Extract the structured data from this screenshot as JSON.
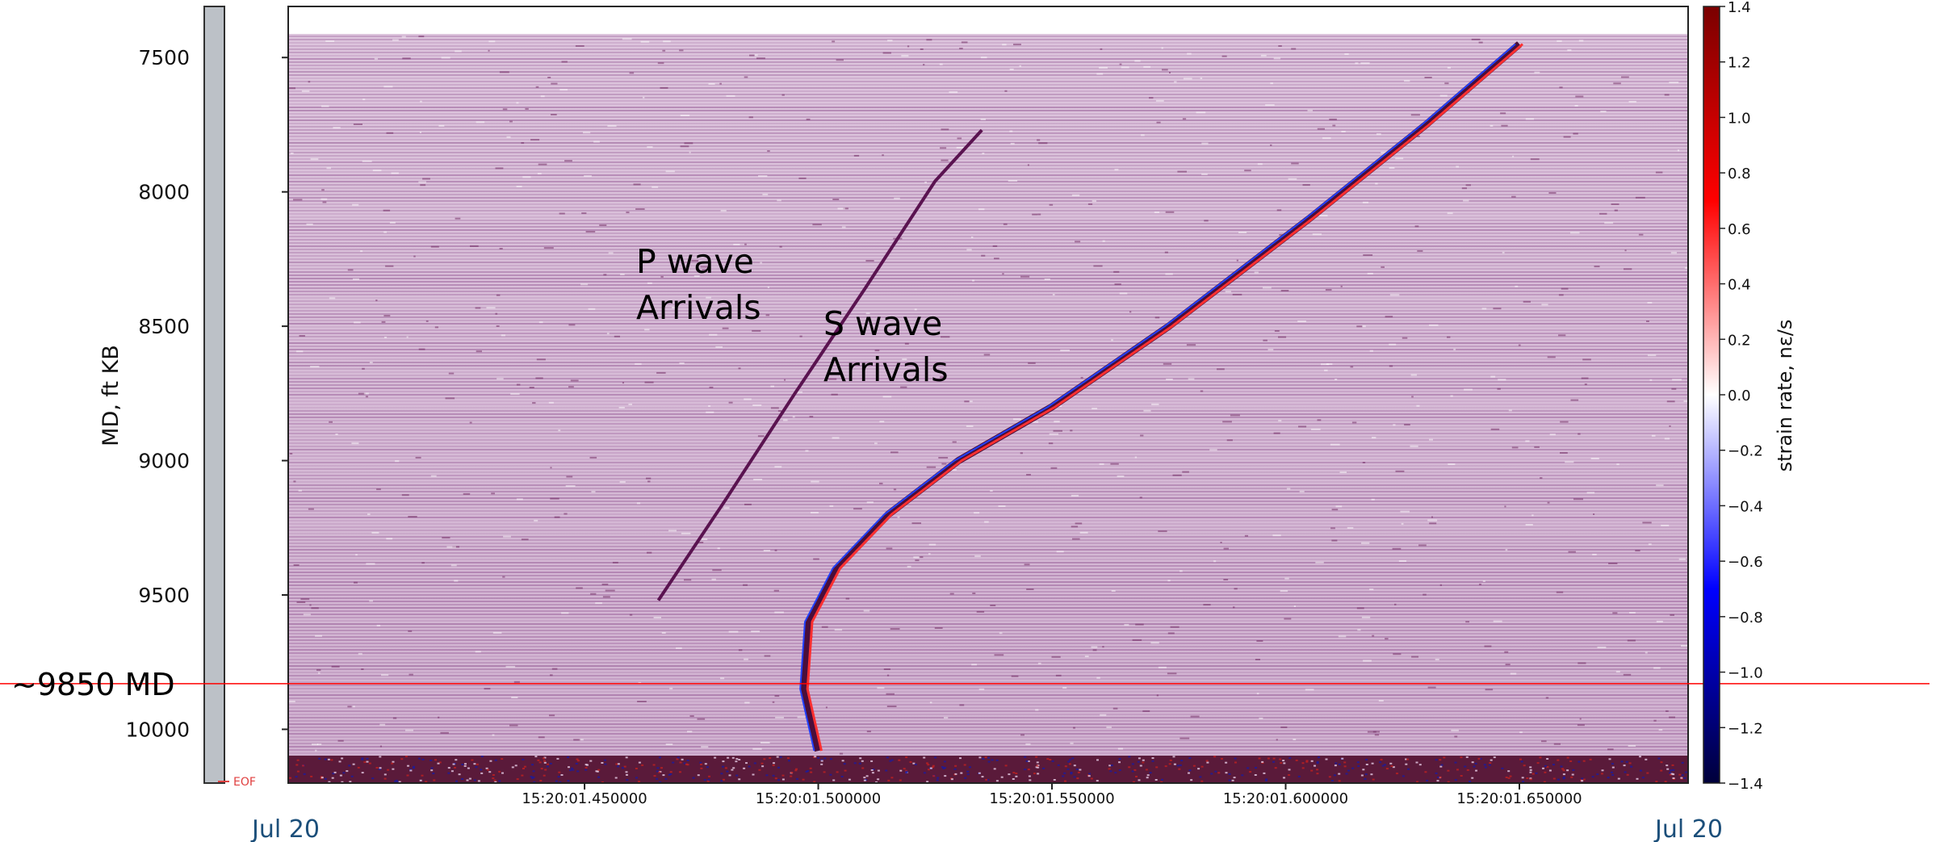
{
  "chart_data": {
    "type": "heatmap",
    "title": "",
    "xlabel": "",
    "ylabel": "MD, ft KB",
    "x_tick_labels": [
      "15:20:01.450000",
      "15:20:01.500000",
      "15:20:01.550000",
      "15:20:01.600000",
      "15:20:01.650000"
    ],
    "x_tick_values": [
      1.45,
      1.5,
      1.55,
      1.6,
      1.65
    ],
    "xlim": [
      1.3866,
      1.6861
    ],
    "y_ticks": [
      7500,
      8000,
      8500,
      9000,
      9500,
      10000
    ],
    "ylim": [
      10200,
      7310
    ],
    "y_reversed": true,
    "date_labels": {
      "left": "Jul 20",
      "right": "Jul 20"
    },
    "colorbar": {
      "label": "strain rate, nε/s",
      "range": [
        -1.4,
        1.4
      ],
      "ticks": [
        "1.4",
        "1.2",
        "1.0",
        "0.8",
        "0.6",
        "0.4",
        "0.2",
        "0.0",
        "−0.2",
        "−0.4",
        "−0.6",
        "−0.8",
        "−1.0",
        "−1.2",
        "−1.4"
      ],
      "colormap": [
        "#00003a",
        "#0000ff",
        "#ffffff",
        "#ff0000",
        "#7a0000"
      ]
    },
    "background_noise_color": "#b487b4",
    "annotations": [
      {
        "text_lines": [
          "P wave",
          "Arrivals"
        ]
      },
      {
        "text_lines": [
          "S wave",
          "Arrivals"
        ]
      }
    ],
    "reference_line": {
      "label": "~9850 MD",
      "md": 9830,
      "color": "#ff0000"
    },
    "eof_marker": {
      "label": "EOF",
      "md": 10110
    },
    "p_wave_arrival": {
      "t": [
        1.4658,
        1.48,
        1.495,
        1.51,
        1.525,
        1.535
      ],
      "md": [
        9520,
        9150,
        8750,
        8360,
        7960,
        7770
      ]
    },
    "s_wave_arrival": {
      "t": [
        1.5,
        1.497,
        1.498,
        1.504,
        1.515,
        1.53,
        1.55,
        1.575,
        1.605,
        1.63,
        1.65
      ],
      "md": [
        10080,
        9850,
        9600,
        9400,
        9200,
        9000,
        8800,
        8500,
        8100,
        7750,
        7450
      ]
    },
    "colorbar_values_note": ""
  }
}
